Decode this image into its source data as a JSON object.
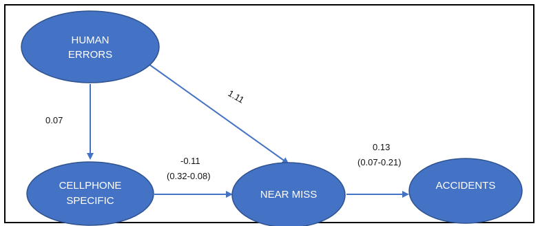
{
  "colors": {
    "node_fill": "#4472C4",
    "node_stroke": "#2F528F",
    "edge": "#4472C4",
    "frame": "#000000",
    "text_on_node": "#ffffff",
    "label_text": "#111111"
  },
  "nodes": {
    "human_errors": {
      "line1": "HUMAN",
      "line2": "ERRORS"
    },
    "cellphone_specific": {
      "line1": "CELLPHONE",
      "line2": "SPECIFIC"
    },
    "near_miss": {
      "label": "NEAR MISS"
    },
    "accidents": {
      "label": "ACCIDENTS"
    }
  },
  "edges": {
    "human_to_cellphone": {
      "coef": "0.07"
    },
    "human_to_nearmiss": {
      "coef": "1.11"
    },
    "cellphone_to_nearmiss": {
      "coef": "-0.11",
      "ci": "(0.32-0.08)"
    },
    "nearmiss_to_accidents": {
      "coef": "0.13",
      "ci": "(0.07-0.21)"
    }
  }
}
